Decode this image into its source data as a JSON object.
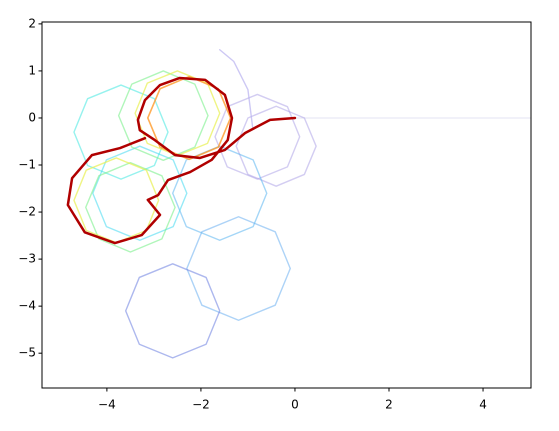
{
  "chart_data": {
    "type": "line",
    "xlim": [
      -5.38,
      5.02
    ],
    "ylim": [
      -5.74,
      2.04
    ],
    "xticks": [
      {
        "value": -4,
        "label": "−4"
      },
      {
        "value": -2,
        "label": "−2"
      },
      0,
      2,
      4
    ],
    "yticks": [
      2,
      1,
      0,
      {
        "value": -1,
        "label": "−1"
      },
      {
        "value": -2,
        "label": "−2"
      },
      {
        "value": -3,
        "label": "−3"
      },
      {
        "value": -4,
        "label": "−4"
      },
      {
        "value": -5,
        "label": "−5"
      }
    ],
    "series": [
      {
        "color": "#d8d8ee",
        "alpha": 0.6,
        "linewidth": 1.2,
        "x": [
          0,
          5
        ],
        "y": [
          0,
          0
        ]
      },
      {
        "color": "#a89ce6",
        "alpha": 0.5,
        "linewidth": 1.4,
        "x": [
          0.45,
          0.2,
          -0.4,
          -1.0,
          -1.25,
          -1.0,
          -0.4,
          0.2,
          0.45
        ],
        "y": [
          -0.6,
          0.0,
          0.25,
          0.0,
          -0.6,
          -1.2,
          -1.45,
          -1.2,
          -0.6
        ]
      },
      {
        "color": "#a89ce6",
        "alpha": 0.5,
        "linewidth": 1.4,
        "x": [
          0.1,
          -0.16,
          -0.8,
          -1.44,
          -1.7,
          -1.44,
          -0.8,
          -0.16,
          0.1
        ],
        "y": [
          -0.4,
          0.24,
          0.5,
          0.24,
          -0.4,
          -1.04,
          -1.3,
          -1.04,
          -0.4
        ]
      },
      {
        "color": "#b8b0f0",
        "alpha": 0.7,
        "linewidth": 1.4,
        "x": [
          -0.9,
          -1.0,
          -1.3,
          -1.6
        ],
        "y": [
          -0.2,
          0.6,
          1.2,
          1.45
        ]
      },
      {
        "color": "#6aaef0",
        "alpha": 0.55,
        "linewidth": 1.4,
        "x": [
          -0.1,
          -0.42,
          -1.2,
          -1.98,
          -2.3,
          -1.98,
          -1.2,
          -0.42,
          -0.1
        ],
        "y": [
          -3.2,
          -2.42,
          -2.1,
          -2.42,
          -3.2,
          -3.98,
          -4.3,
          -3.98,
          -3.2
        ]
      },
      {
        "color": "#6a7ee0",
        "alpha": 0.55,
        "linewidth": 1.4,
        "x": [
          -1.6,
          -1.89,
          -2.6,
          -3.31,
          -3.6,
          -3.31,
          -2.6,
          -1.89,
          -1.6
        ],
        "y": [
          -4.1,
          -3.39,
          -3.1,
          -3.39,
          -4.1,
          -4.81,
          -5.1,
          -4.81,
          -4.1
        ]
      },
      {
        "color": "#5ab4f0",
        "alpha": 0.55,
        "linewidth": 1.4,
        "x": [
          -0.6,
          -0.89,
          -1.6,
          -2.31,
          -2.6,
          -2.31,
          -1.6,
          -0.89,
          -0.6
        ],
        "y": [
          -1.6,
          -0.89,
          -0.6,
          -0.89,
          -1.6,
          -2.31,
          -2.6,
          -2.31,
          -1.6
        ]
      },
      {
        "color": "#40e8e0",
        "alpha": 0.55,
        "linewidth": 1.4,
        "x": [
          -2.7,
          -2.99,
          -3.7,
          -4.41,
          -4.7,
          -4.41,
          -3.7,
          -2.99,
          -2.7
        ],
        "y": [
          -0.3,
          0.41,
          0.7,
          0.41,
          -0.3,
          -1.01,
          -1.3,
          -1.01,
          -0.3
        ]
      },
      {
        "color": "#40d8f0",
        "alpha": 0.55,
        "linewidth": 1.4,
        "x": [
          -2.3,
          -2.59,
          -3.3,
          -4.01,
          -4.3,
          -4.01,
          -3.3,
          -2.59,
          -2.3
        ],
        "y": [
          -1.6,
          -0.89,
          -0.6,
          -0.89,
          -1.6,
          -2.31,
          -2.6,
          -2.31,
          -1.6
        ]
      },
      {
        "color": "#7cf08c",
        "alpha": 0.6,
        "linewidth": 1.4,
        "x": [
          -1.85,
          -2.13,
          -2.8,
          -3.47,
          -3.75,
          -3.47,
          -2.8,
          -2.13,
          -1.85
        ],
        "y": [
          0.05,
          0.72,
          1.0,
          0.72,
          0.05,
          -0.62,
          -0.9,
          -0.62,
          0.05
        ]
      },
      {
        "color": "#7cf08c",
        "alpha": 0.6,
        "linewidth": 1.4,
        "x": [
          -2.55,
          -2.83,
          -3.5,
          -4.17,
          -4.45,
          -4.17,
          -3.5,
          -2.83,
          -2.55
        ],
        "y": [
          -1.9,
          -1.23,
          -0.95,
          -1.23,
          -1.9,
          -2.57,
          -2.85,
          -2.57,
          -1.9
        ]
      },
      {
        "color": "#e8f050",
        "alpha": 0.7,
        "linewidth": 1.4,
        "x": [
          -1.6,
          -1.86,
          -2.5,
          -3.14,
          -3.4,
          -3.14,
          -2.5,
          -1.86,
          -1.6
        ],
        "y": [
          0.1,
          0.74,
          1.0,
          0.74,
          0.1,
          -0.54,
          -0.8,
          -0.54,
          0.1
        ]
      },
      {
        "color": "#e8f050",
        "alpha": 0.7,
        "linewidth": 1.4,
        "x": [
          -2.9,
          -3.16,
          -3.8,
          -4.44,
          -4.7,
          -4.44,
          -3.8,
          -3.16,
          -2.9
        ],
        "y": [
          -1.75,
          -1.11,
          -0.85,
          -1.11,
          -1.75,
          -2.39,
          -2.65,
          -2.39,
          -1.75
        ]
      },
      {
        "color": "#ff9a28",
        "alpha": 0.8,
        "linewidth": 1.6,
        "x": [
          -1.37,
          -1.63,
          -2.25,
          -2.87,
          -3.13,
          -2.87,
          -2.25,
          -1.63,
          -1.37
        ],
        "y": [
          0.0,
          0.62,
          0.88,
          0.62,
          0.0,
          -0.62,
          -0.88,
          -0.62,
          0.0
        ]
      },
      {
        "color": "#b00000",
        "alpha": 1,
        "linewidth": 2.5,
        "x": [
          0,
          -0.53,
          -1.06,
          -1.49,
          -2.02,
          -2.55,
          -2.98,
          -3.3,
          -3.34,
          -3.19,
          -2.87,
          -2.45,
          -1.91,
          -1.49,
          -1.34,
          -1.43,
          -1.77,
          -2.23,
          -2.7,
          -2.91,
          -3.13,
          -2.87,
          -3.26,
          -3.83,
          -4.47,
          -4.83,
          -4.74,
          -4.32,
          -3.72,
          -3.19
        ],
        "y": [
          0,
          -0.04,
          -0.32,
          -0.68,
          -0.85,
          -0.79,
          -0.47,
          -0.26,
          -0.04,
          0.38,
          0.7,
          0.85,
          0.81,
          0.49,
          0,
          -0.47,
          -0.89,
          -1.15,
          -1.32,
          -1.64,
          -1.74,
          -2.06,
          -2.49,
          -2.66,
          -2.43,
          -1.85,
          -1.28,
          -0.79,
          -0.64,
          -0.43
        ]
      }
    ]
  }
}
